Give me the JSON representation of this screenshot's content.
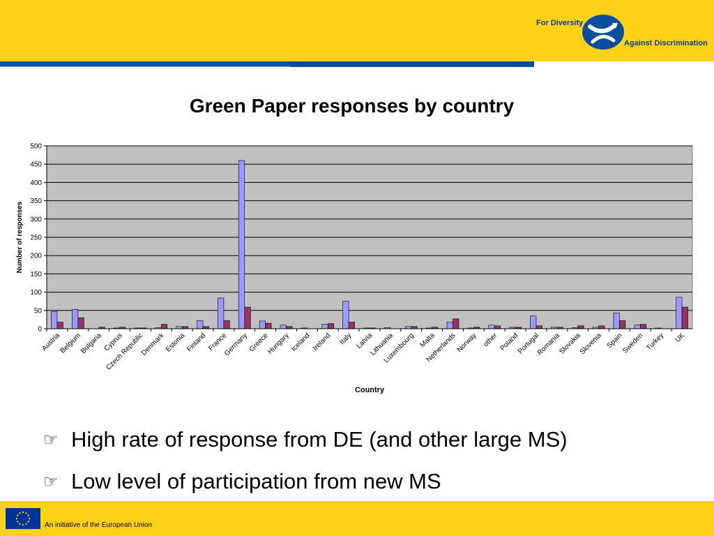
{
  "header": {
    "logo_line1": "For Diversity",
    "logo_line2": "Against Discrimination",
    "logo_icon": "diversity-logo-icon",
    "colors": {
      "band": "#fcd116",
      "rule": "#0a4ea0",
      "logo": "#0a3e8f"
    }
  },
  "chart_data": {
    "type": "bar",
    "title": "Green Paper responses by country",
    "xlabel": "Country",
    "ylabel": "Number of responses",
    "ylim": [
      0,
      500
    ],
    "yticks": [
      0,
      50,
      100,
      150,
      200,
      250,
      300,
      350,
      400,
      450,
      500
    ],
    "grid": true,
    "legend": "none",
    "categories": [
      "Austria",
      "Belgium",
      "Bulgaria",
      "Cyprus",
      "Czech Republic",
      "Denmark",
      "Estonia",
      "Finland",
      "France",
      "Germany",
      "Greece",
      "Hungary",
      "Iceland",
      "Ireland",
      "Italy",
      "Latvia",
      "Lithuania",
      "Luxembourg",
      "Malta",
      "Netherlands",
      "Norway",
      "other",
      "Poland",
      "Portugal",
      "Romania",
      "Slovakia",
      "Slovenia",
      "Spain",
      "Sweden",
      "Turkey",
      "UK"
    ],
    "series": [
      {
        "color": "#9999ff",
        "values": [
          47,
          53,
          0,
          2,
          2,
          3,
          6,
          22,
          84,
          460,
          21,
          10,
          2,
          12,
          75,
          2,
          3,
          6,
          2,
          18,
          2,
          10,
          4,
          35,
          4,
          3,
          4,
          43,
          10,
          2,
          86
        ]
      },
      {
        "color": "#993366",
        "values": [
          18,
          30,
          4,
          4,
          2,
          12,
          6,
          6,
          22,
          59,
          15,
          6,
          0,
          14,
          18,
          2,
          0,
          6,
          4,
          27,
          4,
          8,
          4,
          8,
          4,
          8,
          8,
          22,
          12,
          0,
          59
        ]
      }
    ],
    "plot_bg": "#c0c0c0"
  },
  "bullets": [
    {
      "icon": "pointing-hand-icon",
      "glyph": "☞",
      "text": "High rate of response from DE (and other large MS)"
    },
    {
      "icon": "pointing-hand-icon",
      "glyph": "☞",
      "text": "Low level of participation from new MS"
    }
  ],
  "footer": {
    "text": "An initiative of the European Union",
    "flag_icon": "eu-flag-icon",
    "colors": {
      "flag": "#003399",
      "star": "#ffcc00"
    }
  }
}
